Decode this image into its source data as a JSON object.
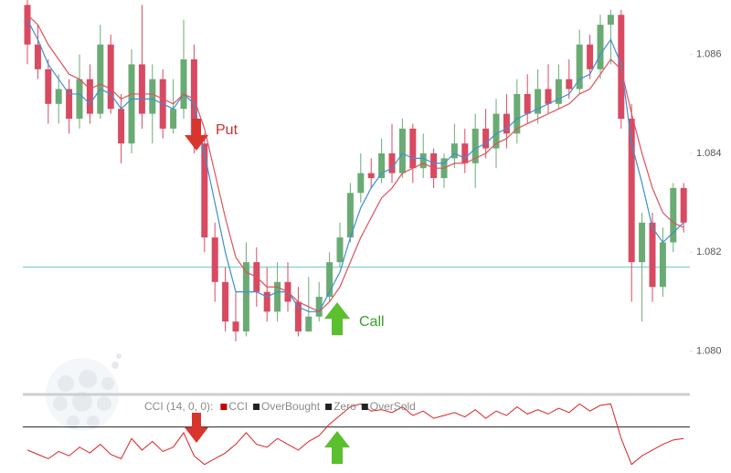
{
  "chart_data": [
    {
      "type": "candlestick",
      "open": [
        1.087,
        1.0862,
        1.0857,
        1.085,
        1.0853,
        1.0847,
        1.0855,
        1.0848,
        1.0862,
        1.0849,
        1.0842,
        1.0858,
        1.0848,
        1.0855,
        1.0845,
        1.0849,
        1.0859,
        1.0842,
        1.0823,
        1.0814,
        1.0806,
        1.0804,
        1.0818,
        1.0812,
        1.0808,
        1.0814,
        1.081,
        1.0804,
        1.0807,
        1.0811,
        1.0818,
        1.0823,
        1.0832,
        1.0836,
        1.0835,
        1.084,
        1.0836,
        1.0845,
        1.0837,
        1.084,
        1.0835,
        1.0839,
        1.0842,
        1.0838,
        1.0845,
        1.0841,
        1.0848,
        1.0844,
        1.0852,
        1.0848,
        1.0853,
        1.085,
        1.0855,
        1.0853,
        1.0862,
        1.0857,
        1.0866,
        1.0868,
        1.0847,
        1.0818,
        1.0826,
        1.0813,
        1.0822,
        1.0833
      ],
      "high": [
        1.0871,
        1.0866,
        1.0859,
        1.0856,
        1.0855,
        1.086,
        1.0858,
        1.0866,
        1.0864,
        1.0852,
        1.0861,
        1.087,
        1.0858,
        1.0857,
        1.0855,
        1.0867,
        1.0862,
        1.0844,
        1.0826,
        1.0817,
        1.0812,
        1.0822,
        1.0821,
        1.0817,
        1.0818,
        1.0818,
        1.0813,
        1.0815,
        1.0814,
        1.082,
        1.0826,
        1.0834,
        1.084,
        1.0839,
        1.0843,
        1.0846,
        1.0847,
        1.0846,
        1.0844,
        1.0841,
        1.084,
        1.0846,
        1.0845,
        1.0848,
        1.0849,
        1.0851,
        1.0852,
        1.0855,
        1.0856,
        1.0857,
        1.0858,
        1.0858,
        1.0859,
        1.0865,
        1.0864,
        1.0868,
        1.0869,
        1.0869,
        1.085,
        1.0828,
        1.0828,
        1.0825,
        1.0834,
        1.0834
      ],
      "low": [
        1.0858,
        1.0855,
        1.0846,
        1.0846,
        1.0844,
        1.0845,
        1.0846,
        1.0847,
        1.0848,
        1.0838,
        1.084,
        1.0845,
        1.0842,
        1.0843,
        1.0844,
        1.0847,
        1.084,
        1.082,
        1.081,
        1.0804,
        1.0802,
        1.0803,
        1.0809,
        1.0806,
        1.0806,
        1.0808,
        1.0803,
        1.0804,
        1.0806,
        1.081,
        1.0817,
        1.0822,
        1.083,
        1.0833,
        1.0834,
        1.0834,
        1.0835,
        1.0834,
        1.0835,
        1.0833,
        1.0833,
        1.0837,
        1.0836,
        1.0833,
        1.0839,
        1.0837,
        1.0841,
        1.0842,
        1.0846,
        1.0846,
        1.0848,
        1.0849,
        1.0851,
        1.0852,
        1.0855,
        1.0855,
        1.0858,
        1.0845,
        1.081,
        1.0806,
        1.081,
        1.0811,
        1.082,
        1.0824
      ],
      "close": [
        1.0862,
        1.0857,
        1.085,
        1.0853,
        1.0847,
        1.0855,
        1.0848,
        1.0862,
        1.0849,
        1.0842,
        1.0858,
        1.0848,
        1.0855,
        1.0845,
        1.0849,
        1.0859,
        1.0842,
        1.0823,
        1.0814,
        1.0806,
        1.0804,
        1.0818,
        1.0812,
        1.0808,
        1.0814,
        1.081,
        1.0804,
        1.0807,
        1.0811,
        1.0818,
        1.0823,
        1.0832,
        1.0836,
        1.0835,
        1.084,
        1.0836,
        1.0845,
        1.0837,
        1.084,
        1.0835,
        1.0839,
        1.0842,
        1.0838,
        1.0845,
        1.0841,
        1.0848,
        1.0844,
        1.0852,
        1.0848,
        1.0853,
        1.085,
        1.0855,
        1.0853,
        1.0862,
        1.0857,
        1.0866,
        1.0868,
        1.0847,
        1.0818,
        1.0826,
        1.0813,
        1.0822,
        1.0833,
        1.0826
      ],
      "up_color": "#6aab74",
      "down_color": "#d84a61",
      "lines": [
        {
          "color": "#3d8fcf",
          "values": [
            1.0867,
            1.0863,
            1.0858,
            1.0855,
            1.0852,
            1.0852,
            1.085,
            1.0853,
            1.0852,
            1.0849,
            1.0851,
            1.0851,
            1.0851,
            1.085,
            1.0849,
            1.0852,
            1.085,
            1.084,
            1.083,
            1.082,
            1.0812,
            1.0812,
            1.0812,
            1.0811,
            1.0812,
            1.0812,
            1.0809,
            1.0808,
            1.0808,
            1.0812,
            1.0816,
            1.0823,
            1.0829,
            1.0833,
            1.0836,
            1.0837,
            1.084,
            1.0839,
            1.0839,
            1.0838,
            1.0838,
            1.084,
            1.0839,
            1.0841,
            1.0842,
            1.0844,
            1.0845,
            1.0847,
            1.0848,
            1.0849,
            1.085,
            1.0851,
            1.0852,
            1.0855,
            1.0856,
            1.086,
            1.0863,
            1.0858,
            1.0842,
            1.0834,
            1.0825,
            1.0822,
            1.0824,
            1.0826
          ]
        },
        {
          "color": "#e0505c",
          "values": [
            1.0868,
            1.0866,
            1.0862,
            1.0859,
            1.0856,
            1.0855,
            1.0853,
            1.0854,
            1.0853,
            1.0851,
            1.0852,
            1.0852,
            1.0852,
            1.0851,
            1.085,
            1.0852,
            1.0851,
            1.0845,
            1.0836,
            1.0827,
            1.0819,
            1.0816,
            1.0815,
            1.0813,
            1.0813,
            1.0812,
            1.081,
            1.0809,
            1.0808,
            1.081,
            1.0813,
            1.0818,
            1.0823,
            1.0827,
            1.0831,
            1.0833,
            1.0836,
            1.0837,
            1.0838,
            1.0837,
            1.0837,
            1.0838,
            1.0838,
            1.0839,
            1.084,
            1.0842,
            1.0843,
            1.0845,
            1.0846,
            1.0847,
            1.0848,
            1.0849,
            1.085,
            1.0852,
            1.0853,
            1.0856,
            1.0859,
            1.0857,
            1.0848,
            1.084,
            1.0833,
            1.0828,
            1.0826,
            1.0825
          ]
        }
      ],
      "hline": {
        "value": 1.0817,
        "color": "#8fd8cf"
      },
      "ylim": [
        1.0792,
        1.0871
      ],
      "yticks": [
        {
          "value": 1.08,
          "label": "1.080"
        },
        {
          "value": 1.082,
          "label": "1.082"
        },
        {
          "value": 1.084,
          "label": "1.084"
        },
        {
          "value": 1.086,
          "label": "1.086"
        }
      ],
      "annotations": [
        "Put",
        "Call"
      ]
    },
    {
      "type": "line",
      "label": "CCI (14, 0, 0):",
      "legend": [
        {
          "name": "CCI",
          "color": "#cc0000"
        },
        {
          "name": "OverBought",
          "color": "#222222"
        },
        {
          "name": "Zero",
          "color": "#222222"
        },
        {
          "name": "OverSold",
          "color": "#222222"
        }
      ],
      "values": [
        -80,
        -95,
        -110,
        -85,
        -100,
        -70,
        -90,
        -60,
        -95,
        -110,
        -40,
        -80,
        -50,
        -85,
        -70,
        -20,
        -100,
        -130,
        -110,
        -90,
        -60,
        -20,
        -60,
        -70,
        -40,
        -60,
        -80,
        -50,
        -30,
        10,
        40,
        70,
        80,
        55,
        60,
        50,
        70,
        40,
        55,
        30,
        40,
        50,
        35,
        60,
        30,
        55,
        40,
        70,
        45,
        60,
        45,
        65,
        50,
        80,
        55,
        75,
        80,
        -40,
        -130,
        -100,
        -80,
        -60,
        -45,
        -40
      ],
      "color": "#dd2222",
      "zero": 0,
      "ylim": [
        -150,
        100
      ]
    }
  ]
}
